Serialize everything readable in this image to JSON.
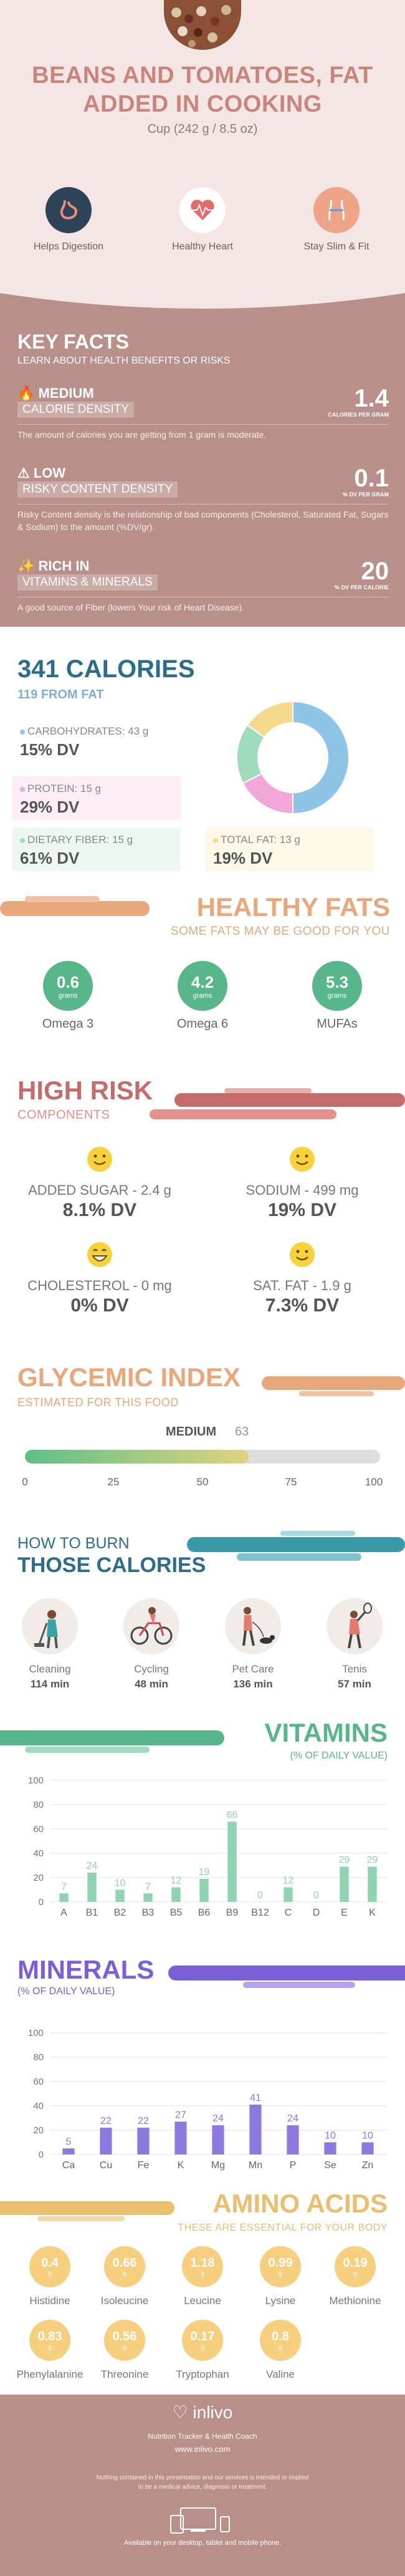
{
  "header": {
    "title": "BEANS AND TOMATOES, FAT ADDED IN COOKING",
    "serving": "Cup (242 g / 8.5 oz)",
    "benefits": [
      "Helps Digestion",
      "Healthy Heart",
      "Stay Slim & Fit"
    ]
  },
  "key_facts": {
    "title": "KEY FACTS",
    "subtitle": "LEARN ABOUT HEALTH BENEFITS OR RISKS",
    "rows": [
      {
        "level": "MEDIUM",
        "name": "CALORIE DENSITY",
        "value": "1.4",
        "unit": "CALORIES PER GRAM",
        "desc": "The amount of calories you are getting from 1 gram is moderate."
      },
      {
        "level": "LOW",
        "name": "RISKY CONTENT DENSITY",
        "value": "0.1",
        "unit": "% DV PER GRAM",
        "desc": "Risky Content density is the relationship of bad components (Cholesterol, Saturated Fat, Sugars & Sodium) to the amount (%DV/gr)."
      },
      {
        "level": "RICH IN",
        "name": "VITAMINS & MINERALS",
        "value": "20",
        "unit": "% DV PER CALORIE",
        "desc": "A good source of Fiber (lowers Your risk of Heart Disease)."
      }
    ]
  },
  "calories": {
    "title": "341 CALORIES",
    "subtitle": "119 FROM FAT",
    "macros": [
      {
        "name": "CARBOHYDRATES: 43 g",
        "dv": "15% DV",
        "color": "#8ec5e6",
        "value": 43
      },
      {
        "name": "PROTEIN: 15 g",
        "dv": "29% DV",
        "color": "#f3a7d8",
        "value": 15
      },
      {
        "name": "DIETARY FIBER: 15 g",
        "dv": "61% DV",
        "color": "#9fdcbd",
        "value": 15
      },
      {
        "name": "TOTAL FAT: 13 g",
        "dv": "19% DV",
        "color": "#f5d98d",
        "value": 13
      }
    ]
  },
  "healthy_fats": {
    "title": "HEALTHY FATS",
    "subtitle": "SOME FATS MAY BE GOOD FOR YOU",
    "items": [
      {
        "value": "0.6",
        "unit": "grams",
        "label": "Omega 3"
      },
      {
        "value": "4.2",
        "unit": "grams",
        "label": "Omega 6"
      },
      {
        "value": "5.3",
        "unit": "grams",
        "label": "MUFAs"
      }
    ]
  },
  "high_risk": {
    "title": "HIGH RISK",
    "subtitle": "COMPONENTS",
    "items": [
      {
        "label": "ADDED SUGAR - 2.4 g",
        "dv": "8.1% DV"
      },
      {
        "label": "SODIUM - 499 mg",
        "dv": "19% DV"
      },
      {
        "label": "CHOLESTEROL - 0 mg",
        "dv": "0% DV"
      },
      {
        "label": "SAT. FAT - 1.9 g",
        "dv": "7.3% DV"
      }
    ]
  },
  "glycemic": {
    "title": "GLYCEMIC INDEX",
    "subtitle": "ESTIMATED FOR THIS FOOD",
    "level": "MEDIUM",
    "value": 63,
    "value_label": "63",
    "ticks": [
      "0",
      "25",
      "50",
      "75",
      "100"
    ]
  },
  "burn": {
    "line1": "HOW TO BURN",
    "line2": "THOSE CALORIES",
    "activities": [
      {
        "name": "Cleaning",
        "time": "114 min"
      },
      {
        "name": "Cycling",
        "time": "48 min"
      },
      {
        "name": "Pet Care",
        "time": "136 min"
      },
      {
        "name": "Tenis",
        "time": "57 min"
      }
    ]
  },
  "vitamins": {
    "title": "VITAMINS",
    "subtitle": "(% OF DAILY VALUE)"
  },
  "minerals": {
    "title": "MINERALS",
    "subtitle": "(% OF DAILY VALUE)"
  },
  "chart_data": [
    {
      "type": "bar",
      "title": "VITAMINS",
      "categories": [
        "A",
        "B1",
        "B2",
        "B3",
        "B5",
        "B6",
        "B9",
        "B12",
        "C",
        "D",
        "E",
        "K"
      ],
      "values": [
        7,
        24,
        10,
        7,
        12,
        19,
        66,
        0,
        12,
        0,
        29,
        29
      ],
      "ylim": [
        0,
        100
      ],
      "yticks": [
        "0",
        "20",
        "40",
        "60",
        "80",
        "100"
      ],
      "color": "#8fd3b0"
    },
    {
      "type": "bar",
      "title": "MINERALS",
      "categories": [
        "Ca",
        "Cu",
        "Fe",
        "K",
        "Mg",
        "Mn",
        "P",
        "Se",
        "Zn"
      ],
      "values": [
        5,
        22,
        22,
        27,
        24,
        41,
        24,
        10,
        10
      ],
      "ylim": [
        0,
        100
      ],
      "yticks": [
        "0",
        "20",
        "40",
        "60",
        "80",
        "100"
      ],
      "color": "#8d78e0"
    }
  ],
  "amino": {
    "title": "AMINO ACIDS",
    "subtitle": "THESE ARE ESSENTIAL FOR YOUR BODY",
    "items": [
      {
        "value": "0.4",
        "unit": "g",
        "label": "Histidine"
      },
      {
        "value": "0.66",
        "unit": "g",
        "label": "Isoleucine"
      },
      {
        "value": "1.18",
        "unit": "g",
        "label": "Leucine"
      },
      {
        "value": "0.99",
        "unit": "g",
        "label": "Lysine"
      },
      {
        "value": "0.19",
        "unit": "g",
        "label": "Methionine"
      },
      {
        "value": "0.83",
        "unit": "g",
        "label": "Phenylalanine"
      },
      {
        "value": "0.56",
        "unit": "g",
        "label": "Threonine"
      },
      {
        "value": "0.17",
        "unit": "g",
        "label": "Tryptophan"
      },
      {
        "value": "0.8",
        "unit": "g",
        "label": "Valine"
      }
    ]
  },
  "footer": {
    "logo": "inlivo",
    "tagline": "Nutrition Tracker & Health Coach",
    "url": "www.inlivo.com",
    "disclaimer": "Nothing contained in this presentation and our services is intended or implied to be a medical advice, diagnosis or treatment.",
    "available": "Available on your desktop, tablet and mobile phone."
  }
}
